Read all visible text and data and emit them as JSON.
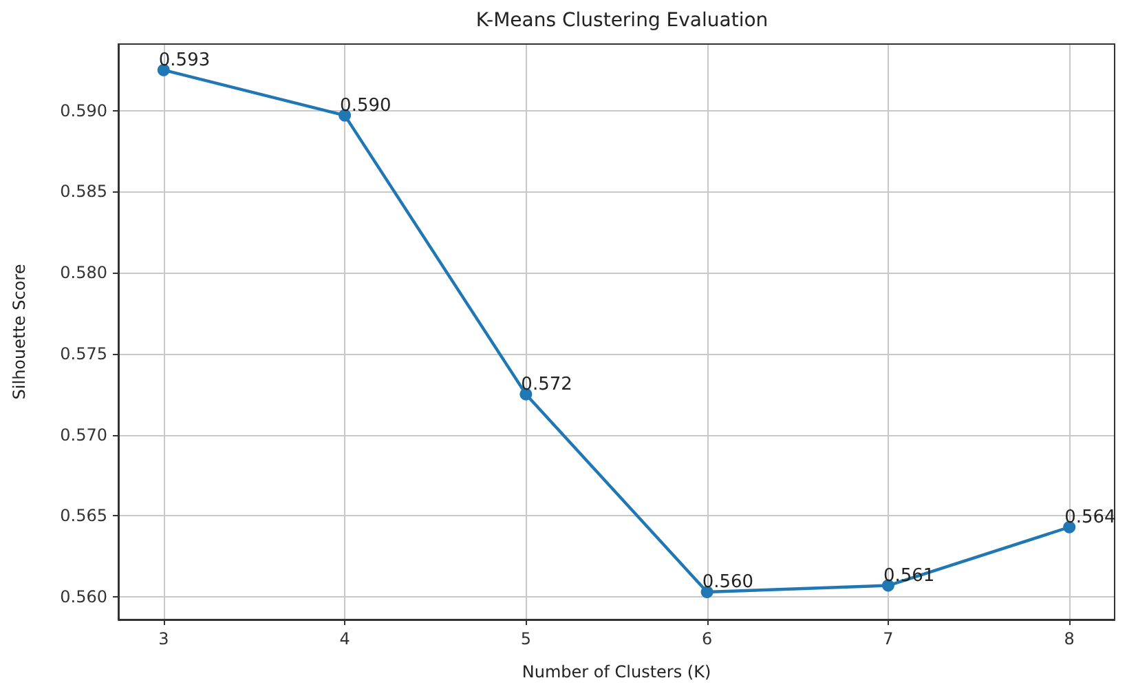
{
  "chart_data": {
    "type": "line",
    "title": "K-Means Clustering Evaluation",
    "xlabel": "Number of Clusters (K)",
    "ylabel": "Silhouette Score",
    "x": [
      3,
      4,
      5,
      6,
      7,
      8
    ],
    "series": [
      {
        "color": "#1f77b4",
        "values": [
          0.5925,
          0.5897,
          0.5725,
          0.5603,
          0.5607,
          0.5643
        ],
        "value_labels": [
          "0.593",
          "0.590",
          "0.572",
          "0.560",
          "0.561",
          "0.564"
        ]
      }
    ],
    "xlim": [
      2.75,
      8.25
    ],
    "xticks": [
      3,
      4,
      5,
      6,
      7,
      8
    ],
    "ylim": [
      0.5586,
      0.5941
    ],
    "yticks": [
      {
        "value": 0.56,
        "label": "0.560"
      },
      0.565,
      {
        "value": 0.57,
        "label": "0.570"
      },
      0.575,
      {
        "value": 0.58,
        "label": "0.580"
      },
      0.585,
      {
        "value": 0.59,
        "label": "0.590"
      }
    ],
    "grid": true,
    "marker": "circle",
    "line_style": "solid"
  }
}
